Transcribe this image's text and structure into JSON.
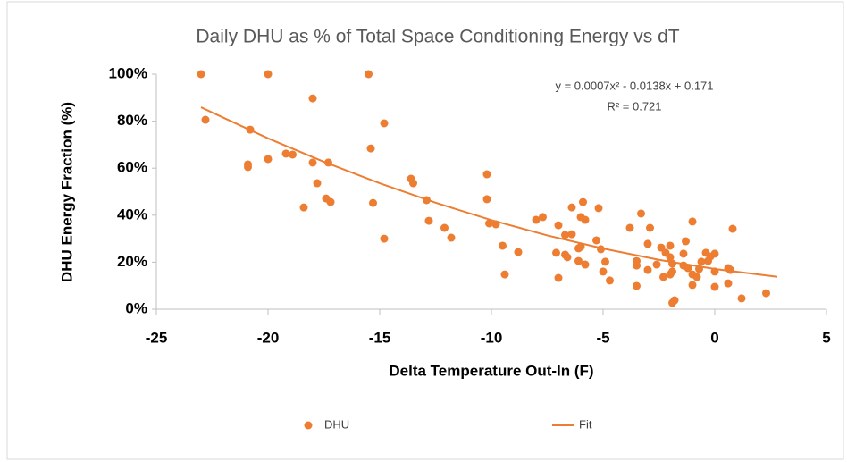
{
  "chart_data": {
    "type": "scatter",
    "title": "Daily DHU as % of Total Space Conditioning  Energy vs dT",
    "x_label": "Delta Temperature Out-In (F)",
    "y_label": "DHU Energy Fraction (%)",
    "annotations": [
      "y = 0.0007x² - 0.0138x + 0.171",
      "R² = 0.721"
    ],
    "xlim": [
      -25,
      5
    ],
    "xticks": [
      -25,
      -20,
      -15,
      -10,
      -5,
      0,
      5
    ],
    "ylim": [
      0,
      100
    ],
    "yticks": [
      {
        "value": 0,
        "label": "0%"
      },
      {
        "value": 20,
        "label": "20%"
      },
      {
        "value": 40,
        "label": "40%"
      },
      {
        "value": 60,
        "label": "60%"
      },
      {
        "value": 80,
        "label": "80%"
      },
      {
        "value": 100,
        "label": "100%"
      }
    ],
    "grid": false,
    "legend": "bottom",
    "series": [
      {
        "name": "DHU",
        "type": "scatter",
        "color": "#ed7d31",
        "x": [
          -23.0,
          -22.8,
          -20.0,
          -15.5,
          -20.8,
          -20.9,
          -20.9,
          -20.0,
          -19.2,
          -18.9,
          -18.0,
          -18.0,
          -17.3,
          -17.8,
          -18.4,
          -17.4,
          -17.2,
          -15.4,
          -14.8,
          -15.3,
          -14.8,
          -13.6,
          -13.5,
          -12.9,
          -12.8,
          -12.1,
          -11.8,
          -10.2,
          -10.2,
          -10.1,
          -9.8,
          -9.5,
          -9.4,
          -8.8,
          -8.0,
          -7.7,
          -7.0,
          -7.1,
          -7.0,
          -6.7,
          -6.6,
          -6.7,
          -6.4,
          -6.4,
          -6.0,
          -5.9,
          -5.8,
          -6.1,
          -6.0,
          -6.1,
          -5.8,
          -5.2,
          -5.3,
          -5.1,
          -4.9,
          -5.0,
          -4.7,
          -3.8,
          -3.3,
          -3.5,
          -3.5,
          -3.5,
          -2.9,
          -3.0,
          -3.0,
          -2.6,
          -2.4,
          -2.2,
          -2.3,
          -2.0,
          -1.9,
          -2.0,
          -1.9,
          -2.0,
          -1.9,
          -1.8,
          -1.4,
          -1.3,
          -1.4,
          -1.2,
          -1.0,
          -1.0,
          -0.8,
          -1.0,
          -0.7,
          -0.6,
          -0.4,
          -0.2,
          -0.3,
          0.0,
          0.0,
          0.0,
          0.6,
          0.7,
          0.6,
          0.8,
          1.2,
          2.3
        ],
        "values": [
          100,
          80.6,
          100,
          100,
          76.4,
          61.6,
          60.5,
          63.9,
          66.2,
          65.8,
          89.7,
          62.4,
          62.4,
          53.6,
          43.3,
          47.1,
          45.6,
          68.4,
          79.1,
          45.2,
          30.0,
          55.5,
          53.6,
          46.4,
          37.6,
          34.6,
          30.4,
          57.4,
          46.8,
          36.5,
          36.1,
          27.0,
          14.8,
          24.3,
          38.0,
          39.2,
          35.7,
          24.0,
          13.3,
          23.2,
          22.1,
          31.6,
          31.9,
          43.3,
          39.2,
          45.6,
          38.0,
          25.9,
          26.6,
          20.5,
          19.0,
          43.0,
          29.3,
          25.5,
          20.2,
          16.0,
          12.2,
          34.6,
          40.7,
          20.5,
          18.6,
          9.9,
          34.6,
          27.8,
          16.7,
          19.0,
          26.2,
          24.0,
          13.7,
          22.1,
          19.4,
          14.8,
          16.0,
          27.0,
          2.7,
          3.8,
          23.6,
          28.9,
          18.6,
          17.5,
          37.3,
          14.8,
          13.7,
          10.3,
          17.1,
          20.2,
          24.0,
          22.4,
          20.5,
          23.6,
          16.0,
          9.5,
          17.5,
          16.7,
          11.0,
          34.2,
          4.6,
          6.8
        ]
      },
      {
        "name": "Fit",
        "type": "line",
        "color": "#ed7d31",
        "x": [
          -23,
          -20,
          -17.5,
          -15,
          -12.5,
          -10,
          -7.5,
          -5,
          -2.5,
          0,
          2.8
        ],
        "values": [
          85.9,
          72.7,
          62.7,
          53.6,
          45.3,
          37.9,
          31.4,
          25.8,
          21.0,
          17.1,
          13.8
        ]
      }
    ]
  }
}
